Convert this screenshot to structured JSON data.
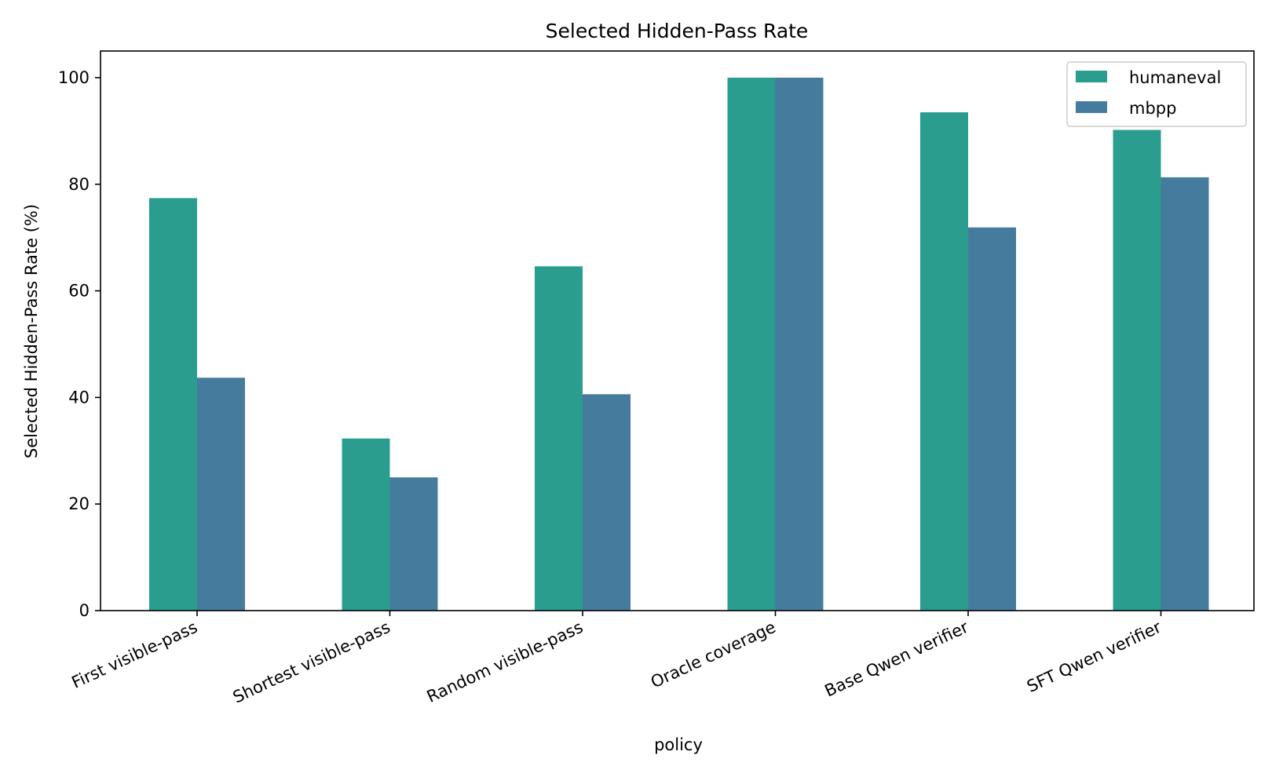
{
  "chart_data": {
    "type": "bar",
    "title": "Selected Hidden-Pass Rate",
    "xlabel": "policy",
    "ylabel": "Selected Hidden-Pass Rate (%)",
    "categories": [
      "First visible-pass",
      "Shortest visible-pass",
      "Random visible-pass",
      "Oracle coverage",
      "Base Qwen verifier",
      "SFT Qwen verifier"
    ],
    "series": [
      {
        "name": "humaneval",
        "color": "#2a9d8f",
        "values": [
          77.4,
          32.3,
          64.6,
          100.0,
          93.5,
          90.2
        ]
      },
      {
        "name": "mbpp",
        "color": "#457b9d",
        "values": [
          43.7,
          25.0,
          40.6,
          100.0,
          71.9,
          81.3
        ]
      }
    ],
    "ylim": [
      0,
      105
    ],
    "yticks": [
      0,
      20,
      40,
      60,
      80,
      100
    ],
    "grid": false,
    "legend_position": "top-right"
  }
}
